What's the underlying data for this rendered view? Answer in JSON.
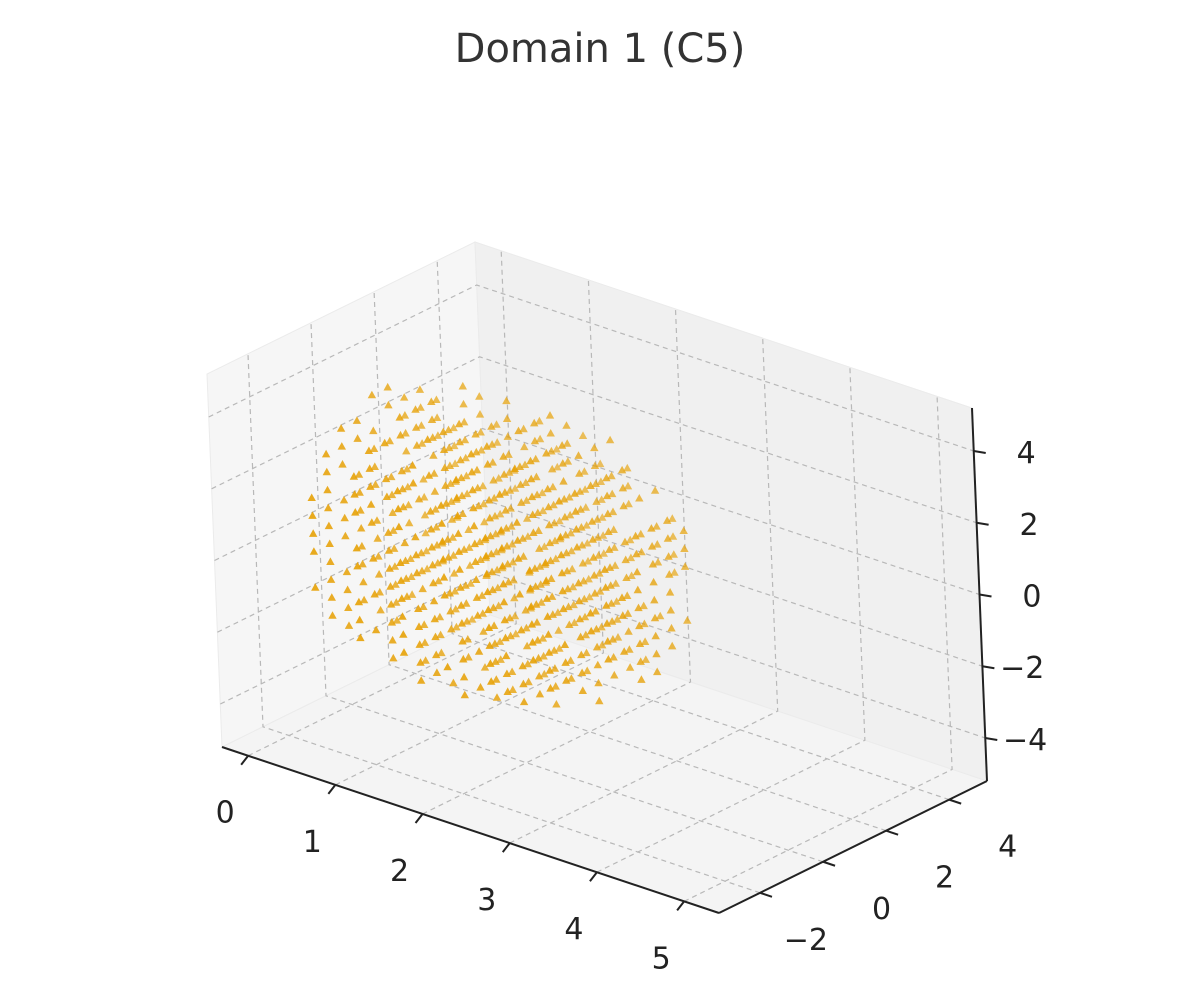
{
  "chart_data": {
    "type": "scatter",
    "title": "Domain 1 (C5)",
    "xlabel": "",
    "ylabel": "",
    "zlabel": "",
    "marker": "triangle",
    "color": "#E69F00",
    "grid": true,
    "x_ticks": [
      "0",
      "1",
      "2",
      "3",
      "4",
      "5"
    ],
    "y_ticks": [
      "−2",
      "0",
      "2",
      "4"
    ],
    "z_ticks": [
      "−4",
      "−2",
      "0",
      "2",
      "4"
    ],
    "xlim": [
      -0.3,
      5.4
    ],
    "ylim": [
      -3.3,
      5.2
    ],
    "zlim": [
      -5.2,
      5.2
    ],
    "point_cloud": {
      "description_of_shape": "dense grid lattice",
      "x_range": [
        0,
        3
      ],
      "y_range": [
        -1,
        4
      ],
      "z_range": [
        -4,
        3
      ],
      "grid_step": 0.5,
      "count_estimate": 900
    }
  }
}
